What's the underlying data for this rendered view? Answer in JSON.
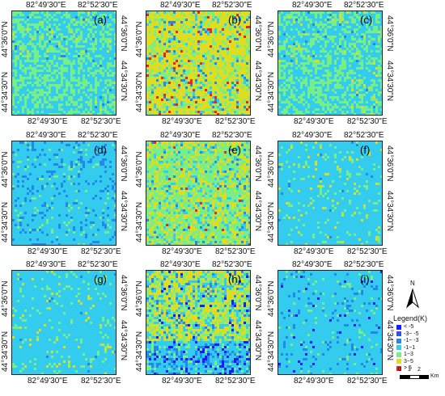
{
  "panels": [
    {
      "label": "(a)",
      "palette": "mixgreen"
    },
    {
      "label": "(b)",
      "palette": "yellow"
    },
    {
      "label": "(c)",
      "palette": "mixgreen"
    },
    {
      "label": "(d)",
      "palette": "cyan"
    },
    {
      "label": "(e)",
      "palette": "greenyellow"
    },
    {
      "label": "(f)",
      "palette": "cyanlight"
    },
    {
      "label": "(g)",
      "palette": "cyanlight"
    },
    {
      "label": "(h)",
      "palette": "yellowblue"
    },
    {
      "label": "(i)",
      "palette": "cyanblue"
    }
  ],
  "coords": {
    "lon_left": "82°49'30\"E",
    "lon_right": "82°52'30\"E",
    "lat_top": "44°36'0\"N",
    "lat_bottom": "44°34'30\"N"
  },
  "legend": {
    "title": "Legend(K)",
    "items": [
      {
        "label": "< -5",
        "color": "#1a1aff"
      },
      {
        "label": "-3~ -5",
        "color": "#3355dd"
      },
      {
        "label": "-1~ -3",
        "color": "#2288ee"
      },
      {
        "label": "-1~1",
        "color": "#33ccee"
      },
      {
        "label": "1~3",
        "color": "#77ee88"
      },
      {
        "label": "3~5",
        "color": "#dddd22"
      },
      {
        "label": "> 5",
        "color": "#ee2222"
      }
    ]
  },
  "north_arrow": {
    "label": "N"
  },
  "scale": {
    "ticks": [
      "0",
      "1",
      "2"
    ],
    "unit": "Km"
  },
  "colors": {
    "cyan": "#33ccee",
    "green": "#77ee88",
    "yellow": "#dddd22",
    "blue": "#2288ee",
    "darkblue": "#1a1aff",
    "red": "#ee2222"
  }
}
